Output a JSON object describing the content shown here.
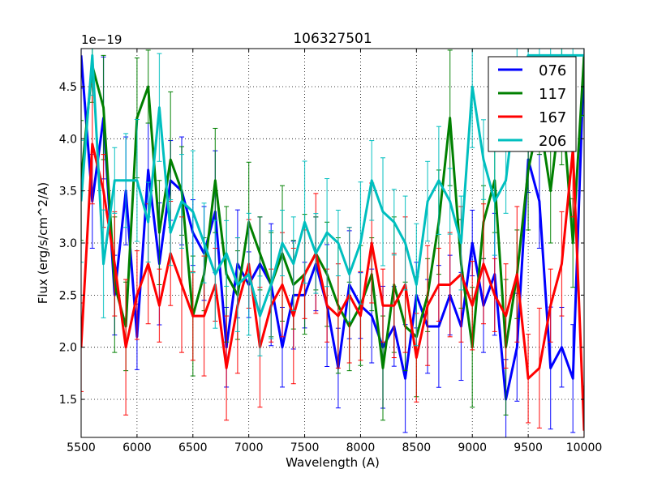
{
  "chart_data": {
    "type": "line",
    "title": "106327501",
    "xlabel": "Wavelength (A)",
    "ylabel": "Flux (erg/s/cm^2/A)",
    "y_offset_label": "1e−19",
    "xlim": [
      5500,
      10000
    ],
    "ylim": [
      1.135,
      4.865
    ],
    "xticks": [
      5500,
      6000,
      6500,
      7000,
      7500,
      8000,
      8500,
      9000,
      9500,
      10000
    ],
    "xtick_labels": [
      "5500",
      "6000",
      "6500",
      "7000",
      "7500",
      "8000",
      "8500",
      "9000",
      "9500",
      "10000"
    ],
    "yticks": [
      1.5,
      2.0,
      2.5,
      3.0,
      3.5,
      4.0,
      4.5
    ],
    "ytick_labels": [
      "1.5",
      "2.0",
      "2.5",
      "3.0",
      "3.5",
      "4.0",
      "4.5"
    ],
    "grid": true,
    "legend_position": "top-right",
    "x": [
      5500,
      5600,
      5700,
      5800,
      5900,
      6000,
      6100,
      6200,
      6300,
      6400,
      6500,
      6600,
      6700,
      6800,
      6900,
      7000,
      7100,
      7200,
      7300,
      7400,
      7500,
      7600,
      7700,
      7800,
      7900,
      8000,
      8100,
      8200,
      8300,
      8400,
      8500,
      8600,
      8700,
      8800,
      8900,
      9000,
      9100,
      9200,
      9300,
      9400,
      9500,
      9600,
      9700,
      9800,
      9900,
      10000
    ],
    "series": [
      {
        "name": "076",
        "color": "#0000ff",
        "error": 0.45,
        "values": [
          4.8,
          3.4,
          4.2,
          2.5,
          3.5,
          2.1,
          3.7,
          2.8,
          3.6,
          3.5,
          3.1,
          2.9,
          3.3,
          2.0,
          2.8,
          2.6,
          2.8,
          2.6,
          2.0,
          2.5,
          2.5,
          2.8,
          2.4,
          1.8,
          2.6,
          2.4,
          2.3,
          2.0,
          2.2,
          1.7,
          2.5,
          2.2,
          2.2,
          2.5,
          2.2,
          3.0,
          2.4,
          2.7,
          1.5,
          2.0,
          3.8,
          3.4,
          1.8,
          2.0,
          1.7,
          4.8
        ]
      },
      {
        "name": "117",
        "color": "#008000",
        "error": 0.5,
        "values": [
          3.6,
          4.7,
          4.3,
          2.6,
          2.2,
          4.2,
          4.5,
          3.1,
          3.8,
          3.5,
          2.3,
          2.7,
          3.6,
          2.7,
          2.5,
          3.2,
          2.9,
          2.6,
          2.9,
          2.6,
          2.7,
          2.9,
          2.7,
          2.4,
          2.2,
          2.4,
          2.7,
          1.8,
          2.6,
          2.2,
          2.1,
          2.5,
          3.2,
          4.2,
          2.8,
          2.0,
          3.2,
          3.6,
          2.0,
          2.7,
          3.7,
          4.2,
          3.5,
          4.4,
          3.0,
          4.8
        ]
      },
      {
        "name": "167",
        "color": "#ff0000",
        "error": 0.5,
        "values": [
          2.0,
          3.95,
          3.5,
          2.8,
          2.0,
          2.5,
          2.8,
          2.4,
          2.9,
          2.6,
          2.3,
          2.3,
          2.6,
          1.8,
          2.4,
          2.8,
          2.0,
          2.4,
          2.6,
          2.3,
          2.7,
          2.9,
          2.4,
          2.3,
          2.5,
          2.3,
          3.0,
          2.4,
          2.4,
          2.6,
          1.9,
          2.4,
          2.6,
          2.6,
          2.7,
          2.4,
          2.8,
          2.5,
          2.3,
          2.7,
          1.7,
          1.8,
          2.4,
          2.8,
          3.9,
          1.2
        ]
      },
      {
        "name": "206",
        "color": "#00bfbf",
        "error": 0.45,
        "values": [
          3.4,
          4.8,
          2.8,
          3.6,
          3.6,
          3.6,
          3.2,
          4.3,
          3.1,
          3.4,
          3.3,
          3.0,
          2.7,
          2.9,
          2.6,
          2.7,
          2.3,
          2.6,
          3.0,
          2.8,
          3.2,
          2.9,
          3.1,
          3.0,
          2.7,
          3.0,
          3.6,
          3.3,
          3.2,
          3.0,
          2.6,
          3.4,
          3.6,
          3.4,
          3.0,
          4.5,
          3.8,
          3.4,
          3.6,
          4.5,
          4.8,
          4.8,
          4.8,
          4.8,
          4.8,
          4.8
        ]
      }
    ]
  }
}
